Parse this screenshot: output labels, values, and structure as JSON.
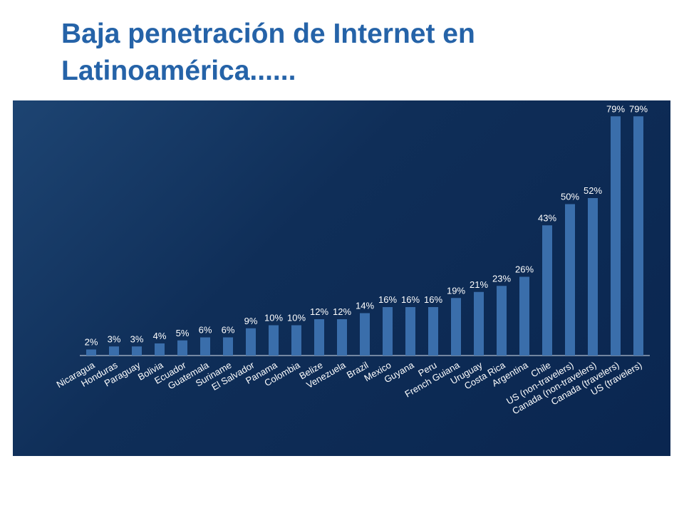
{
  "slide": {
    "title": "Baja penetración de Internet en Latinoamérica......"
  },
  "colors": {
    "title": "#2563a8",
    "panel_background": "#0f2e58",
    "bar": "#3a6eab",
    "label_text": "#ffffff"
  },
  "chart_data": {
    "type": "bar",
    "title": "",
    "xlabel": "",
    "ylabel": "",
    "ylim": [
      0,
      80
    ],
    "grid": false,
    "legend": "none",
    "categories": [
      "Nicaragua",
      "Honduras",
      "Paraguay",
      "Bolivia",
      "Ecuador",
      "Guatemala",
      "Suriname",
      "El Salvador",
      "Panama",
      "Colombia",
      "Belize",
      "Venezuela",
      "Brazil",
      "Mexico",
      "Guyana",
      "Peru",
      "French Guiana",
      "Uruguay",
      "Costa Rica",
      "Argentina",
      "Chile",
      "US (non-travelers)",
      "Canada (non-travelers)",
      "Canada (travelers)",
      "US (travelers)"
    ],
    "values": [
      2,
      3,
      3,
      4,
      5,
      6,
      6,
      9,
      10,
      10,
      12,
      12,
      14,
      16,
      16,
      16,
      19,
      21,
      23,
      26,
      43,
      50,
      52,
      79,
      79
    ],
    "value_labels": [
      "2%",
      "3%",
      "3%",
      "4%",
      "5%",
      "6%",
      "6%",
      "9%",
      "10%",
      "10%",
      "12%",
      "12%",
      "14%",
      "16%",
      "16%",
      "16%",
      "19%",
      "21%",
      "23%",
      "26%",
      "43%",
      "50%",
      "52%",
      "79%",
      "79%"
    ]
  }
}
